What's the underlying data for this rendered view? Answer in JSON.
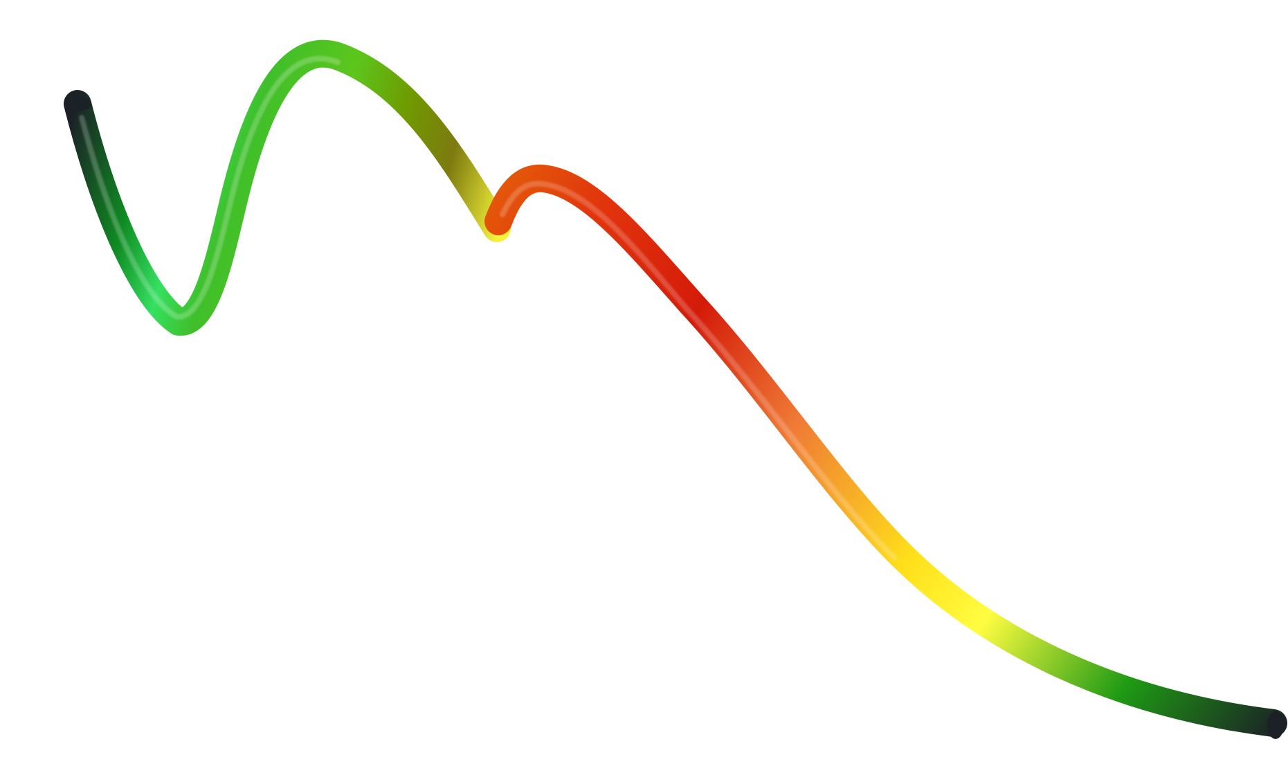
{
  "scene": {
    "background_color": "#ffffff",
    "subject": "tube-stroke",
    "segments": [
      {
        "name": "green-segment",
        "colors": [
          "#1b2126",
          "#0f8a22",
          "#35e060",
          "#3fbf2a",
          "#5cc61c",
          "#6f9a00",
          "#7d7a10",
          "#f4f23a"
        ]
      },
      {
        "name": "orange-red-segment",
        "colors": [
          "#e35a0a",
          "#e2350c",
          "#d41b0a",
          "#ef7a35",
          "#ffe01a",
          "#fffd40",
          "#1f9a14",
          "#1b2126"
        ]
      }
    ]
  }
}
